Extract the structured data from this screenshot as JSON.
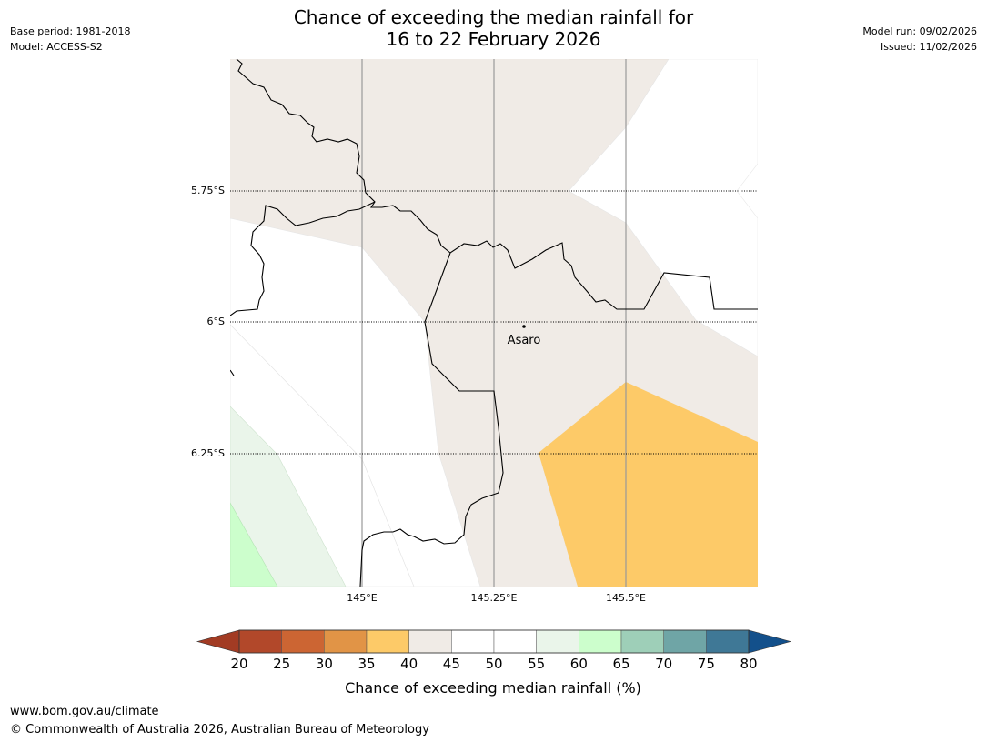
{
  "header": {
    "title_line1": "Chance of exceeding the median rainfall for",
    "title_line2": "16 to 22 February 2026",
    "base_period": "Base period: 1981-2018",
    "model": "Model: ACCESS-S2",
    "model_run": "Model run: 09/02/2026",
    "issued": "Issued: 11/02/2026"
  },
  "map": {
    "lat_labels": [
      "5.75°S",
      "6°S",
      "6.25°S"
    ],
    "lon_labels": [
      "145°E",
      "145.25°E",
      "145.5°E"
    ],
    "place_name": "Asaro"
  },
  "colorbar": {
    "label": "Chance of exceeding median rainfall (%)",
    "ticks": [
      "20",
      "25",
      "30",
      "35",
      "40",
      "45",
      "50",
      "55",
      "60",
      "65",
      "70",
      "75",
      "80"
    ],
    "colors": [
      "#a23b23",
      "#b2482a",
      "#cc6533",
      "#e19446",
      "#fdca68",
      "#f0ebe6",
      "#ffffff",
      "#ffffff",
      "#eaf5ea",
      "#ccfecc",
      "#9ecfb8",
      "#6fa5a6",
      "#3f7896",
      "#13508b"
    ]
  },
  "footer": {
    "url": "www.bom.gov.au/climate",
    "copyright": "© Commonwealth of Australia 2026, Australian Bureau of Meteorology"
  }
}
